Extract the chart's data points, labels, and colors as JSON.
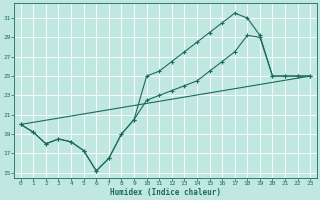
{
  "xlabel": "Humidex (Indice chaleur)",
  "bg_color": "#c0e8e0",
  "grid_color": "#ffffff",
  "line_color": "#1a6b5a",
  "xlim": [
    -0.5,
    23.5
  ],
  "ylim": [
    14.5,
    32.5
  ],
  "xticks": [
    0,
    1,
    2,
    3,
    4,
    5,
    6,
    7,
    8,
    9,
    10,
    11,
    12,
    13,
    14,
    15,
    16,
    17,
    18,
    19,
    20,
    21,
    22,
    23
  ],
  "yticks": [
    15,
    17,
    19,
    21,
    23,
    25,
    27,
    29,
    31
  ],
  "series1_y": [
    20.0,
    19.2,
    18.0,
    18.5,
    18.2,
    17.3,
    15.2,
    16.5,
    19.0,
    20.5,
    25.0,
    25.5,
    26.5,
    27.5,
    28.5,
    29.5,
    30.5,
    31.5,
    31.0,
    29.2,
    25.0,
    25.0,
    25.0,
    25.0
  ],
  "series2_y": [
    20.0,
    19.2,
    18.0,
    18.5,
    18.2,
    17.3,
    15.2,
    16.5,
    19.0,
    20.5,
    22.5,
    23.0,
    23.5,
    24.0,
    24.5,
    25.5,
    26.5,
    27.5,
    29.2,
    29.0,
    25.0,
    25.0,
    25.0,
    25.0
  ],
  "series3_x": [
    0,
    23
  ],
  "series3_y": [
    20.0,
    25.0
  ]
}
